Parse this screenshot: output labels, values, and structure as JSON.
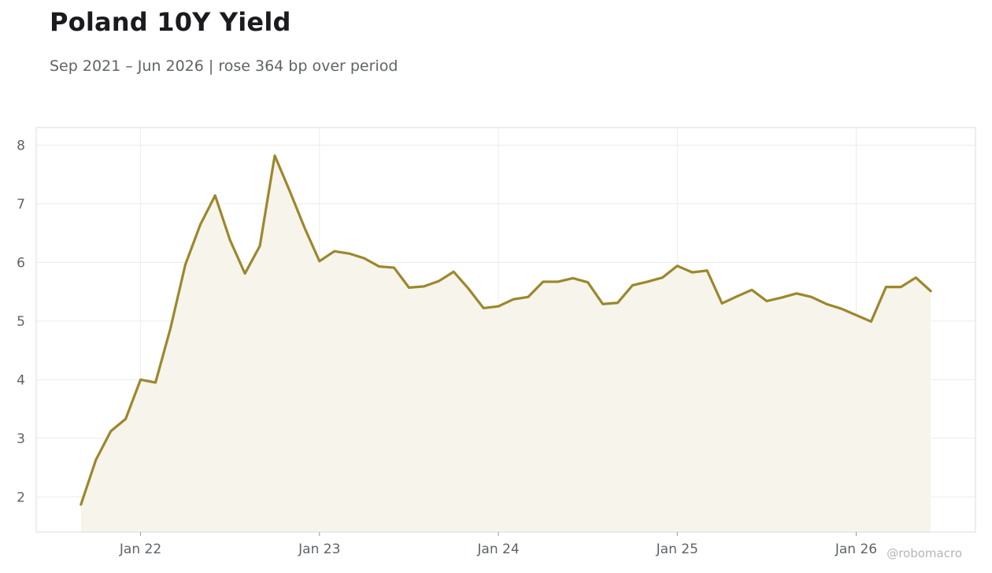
{
  "header": {
    "title": "Poland 10Y Yield",
    "subtitle": "Sep 2021 – Jun 2026 | rose 364 bp over period"
  },
  "watermark": "@robomacro",
  "colors": {
    "line": "#9c872c",
    "fill": "#f7f4ec",
    "grid": "#ececec",
    "frame": "#dddddd",
    "text": "#5f6368"
  },
  "chart_data": {
    "type": "area",
    "title": "Poland 10Y Yield",
    "subtitle": "Sep 2021 – Jun 2026 | rose 364 bp over period",
    "xlabel": "",
    "ylabel": "",
    "x": [
      "2021-09",
      "2021-10",
      "2021-11",
      "2021-12",
      "2022-01",
      "2022-02",
      "2022-03",
      "2022-04",
      "2022-05",
      "2022-06",
      "2022-07",
      "2022-08",
      "2022-09",
      "2022-10",
      "2022-11",
      "2022-12",
      "2023-01",
      "2023-02",
      "2023-03",
      "2023-04",
      "2023-05",
      "2023-06",
      "2023-07",
      "2023-08",
      "2023-09",
      "2023-10",
      "2023-11",
      "2023-12",
      "2024-01",
      "2024-02",
      "2024-03",
      "2024-04",
      "2024-05",
      "2024-06",
      "2024-07",
      "2024-08",
      "2024-09",
      "2024-10",
      "2024-11",
      "2024-12",
      "2025-01",
      "2025-02",
      "2025-03",
      "2025-04",
      "2025-05",
      "2025-06",
      "2025-07",
      "2025-08",
      "2025-09",
      "2025-10",
      "2025-11",
      "2025-12",
      "2026-01",
      "2026-02",
      "2026-03",
      "2026-04",
      "2026-05",
      "2026-06"
    ],
    "series": [
      {
        "name": "",
        "values": [
          1.87,
          2.63,
          3.12,
          3.33,
          4.0,
          3.95,
          4.87,
          5.96,
          6.64,
          7.14,
          6.38,
          5.81,
          6.28,
          7.82,
          7.22,
          6.59,
          6.02,
          6.19,
          6.15,
          6.07,
          5.93,
          5.91,
          5.57,
          5.59,
          5.68,
          5.84,
          5.55,
          5.22,
          5.25,
          5.37,
          5.41,
          5.67,
          5.67,
          5.73,
          5.66,
          5.29,
          5.31,
          5.61,
          5.67,
          5.74,
          5.94,
          5.83,
          5.86,
          5.3,
          5.42,
          5.53,
          5.34,
          5.4,
          5.47,
          5.41,
          5.29,
          5.21,
          5.1,
          4.99,
          5.58,
          5.58,
          5.74,
          5.51
        ]
      }
    ],
    "x_ticks": [
      {
        "date": "2022-01",
        "label": "Jan 22"
      },
      {
        "date": "2023-01",
        "label": "Jan 23"
      },
      {
        "date": "2024-01",
        "label": "Jan 24"
      },
      {
        "date": "2025-01",
        "label": "Jan 25"
      },
      {
        "date": "2026-01",
        "label": "Jan 26"
      }
    ],
    "y_ticks": [
      2,
      3,
      4,
      5,
      6,
      7,
      8
    ],
    "xlim": [
      "2021-06",
      "2026-09"
    ],
    "ylim": [
      1.4,
      8.3
    ],
    "grid": true,
    "legend": "none"
  }
}
